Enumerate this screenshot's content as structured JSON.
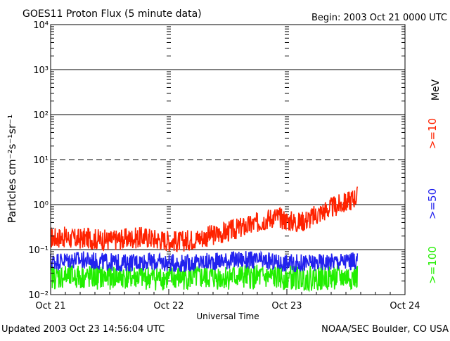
{
  "header": {
    "title": "GOES11 Proton Flux (5 minute data)",
    "begin": "Begin: 2003 Oct 21 0000 UTC"
  },
  "footer": {
    "updated": "Updated 2003 Oct 23 14:56:04 UTC",
    "credit": "NOAA/SEC Boulder, CO USA"
  },
  "chart_data": {
    "type": "line",
    "title": "GOES11 Proton Flux (5 minute data)",
    "xlabel": "Universal Time",
    "ylabel": "Particles cm⁻²s⁻¹sr⁻¹",
    "ylim": [
      0.01,
      10000
    ],
    "yscale": "log",
    "yticks": [
      "10⁻²",
      "10⁻¹",
      "10⁰",
      "10¹",
      "10²",
      "10³",
      "10⁴"
    ],
    "xlim_days": [
      0,
      3
    ],
    "xticks": [
      "Oct 21",
      "Oct 22",
      "Oct 23",
      "Oct 24"
    ],
    "grid": "horizontal lines at decades (dashed at 10¹)",
    "legend_placement": "right",
    "legend_unit": "MeV",
    "colors": {
      ">=10": "#ff2200",
      ">=50": "#2222ee",
      ">=100": "#22ee00"
    },
    "series": [
      {
        "name": ">=10",
        "x_days": [
          0,
          0.1,
          0.2,
          0.3,
          0.4,
          0.5,
          0.6,
          0.7,
          0.8,
          0.9,
          1.0,
          1.1,
          1.2,
          1.3,
          1.4,
          1.5,
          1.6,
          1.7,
          1.8,
          1.9,
          2.0,
          2.1,
          2.2,
          2.3,
          2.4,
          2.5,
          2.6
        ],
        "values": [
          0.18,
          0.19,
          0.17,
          0.18,
          0.17,
          0.16,
          0.17,
          0.18,
          0.19,
          0.17,
          0.16,
          0.15,
          0.17,
          0.19,
          0.22,
          0.25,
          0.3,
          0.35,
          0.45,
          0.55,
          0.45,
          0.4,
          0.5,
          0.7,
          0.9,
          1.1,
          1.6
        ]
      },
      {
        "name": ">=50",
        "x_days": [
          0,
          0.2,
          0.4,
          0.6,
          0.8,
          1.0,
          1.2,
          1.4,
          1.6,
          1.8,
          2.0,
          2.2,
          2.4,
          2.6
        ],
        "values": [
          0.055,
          0.06,
          0.055,
          0.05,
          0.055,
          0.05,
          0.05,
          0.055,
          0.06,
          0.055,
          0.05,
          0.05,
          0.055,
          0.055
        ]
      },
      {
        "name": ">=100",
        "x_days": [
          0,
          0.2,
          0.4,
          0.6,
          0.8,
          1.0,
          1.2,
          1.4,
          1.6,
          1.8,
          2.0,
          2.2,
          2.4,
          2.6
        ],
        "values": [
          0.025,
          0.025,
          0.024,
          0.025,
          0.024,
          0.023,
          0.024,
          0.024,
          0.025,
          0.024,
          0.024,
          0.023,
          0.024,
          0.024
        ]
      }
    ]
  }
}
